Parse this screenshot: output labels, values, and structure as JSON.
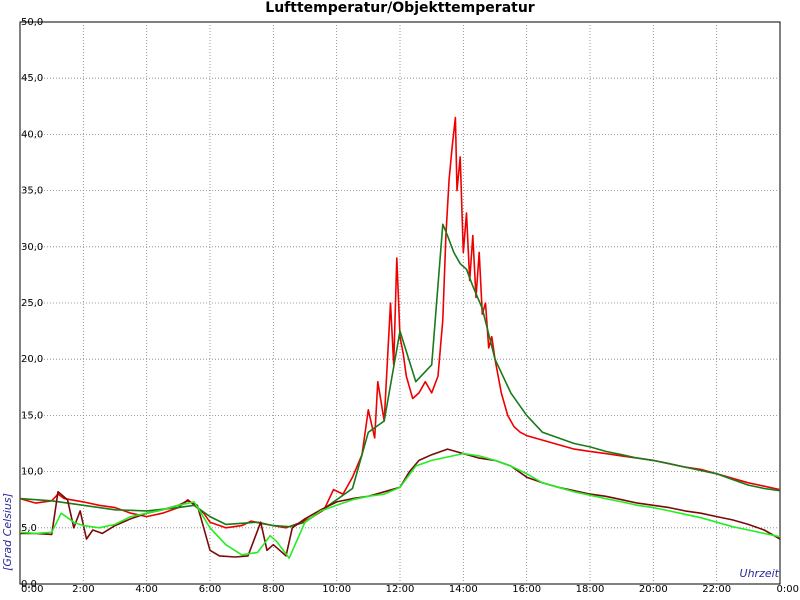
{
  "chart_data": {
    "type": "line",
    "title": "Lufttemperatur/Objekttemperatur",
    "xlabel": "Uhrzeit",
    "ylabel": "[Grad Celsius]",
    "xlim": [
      0,
      24
    ],
    "ylim": [
      0,
      50
    ],
    "grid": true,
    "y_ticks": [
      "0,0",
      "5,0",
      "10,0",
      "15,0",
      "20,0",
      "25,0",
      "30,0",
      "35,0",
      "40,0",
      "45,0",
      "50,0"
    ],
    "x_ticks": [
      "0:00",
      "2:00",
      "4:00",
      "6:00",
      "8:00",
      "10:00",
      "12:00",
      "14:00",
      "16:00",
      "18:00",
      "20:00",
      "22:00",
      "0:00"
    ],
    "series": [
      {
        "color": "#ee0000",
        "x": [
          0,
          0.5,
          1.0,
          1.2,
          1.4,
          1.6,
          2.0,
          2.5,
          3.0,
          3.5,
          4.0,
          4.5,
          5.0,
          5.3,
          5.5,
          5.8,
          6.0,
          6.5,
          7.0,
          7.3,
          7.6,
          8.0,
          8.4,
          8.8,
          9.2,
          9.6,
          9.9,
          10.2,
          10.5,
          10.8,
          11.0,
          11.2,
          11.3,
          11.5,
          11.7,
          11.8,
          11.9,
          12.0,
          12.1,
          12.2,
          12.3,
          12.4,
          12.6,
          12.8,
          13.0,
          13.2,
          13.35,
          13.45,
          13.55,
          13.65,
          13.75,
          13.8,
          13.9,
          14.0,
          14.1,
          14.2,
          14.3,
          14.4,
          14.5,
          14.6,
          14.7,
          14.8,
          14.9,
          15.0,
          15.2,
          15.4,
          15.6,
          15.8,
          16.0,
          16.5,
          17.0,
          17.5,
          18.0,
          18.5,
          19.0,
          19.5,
          20.0,
          20.5,
          21.0,
          21.5,
          22.0,
          22.5,
          23.0,
          23.5,
          24.0
        ],
        "values": [
          7.6,
          7.2,
          7.4,
          8.0,
          7.6,
          7.5,
          7.3,
          7.0,
          6.8,
          6.3,
          6.0,
          6.3,
          6.8,
          7.5,
          7.0,
          6.3,
          5.5,
          5.0,
          5.2,
          5.6,
          5.4,
          5.2,
          5.0,
          5.4,
          5.9,
          6.6,
          8.4,
          8.0,
          9.5,
          11.5,
          15.5,
          13.0,
          18.0,
          14.5,
          25.0,
          19.5,
          29.0,
          22.0,
          20.5,
          18.5,
          17.5,
          16.5,
          17.0,
          18.0,
          17.0,
          18.5,
          23.5,
          31.0,
          36.0,
          39.0,
          41.5,
          35.0,
          38.0,
          29.5,
          33.0,
          27.0,
          31.0,
          25.5,
          29.5,
          24.0,
          25.0,
          21.0,
          22.0,
          20.0,
          17.0,
          15.0,
          14.0,
          13.5,
          13.2,
          12.8,
          12.4,
          12.0,
          11.8,
          11.6,
          11.4,
          11.2,
          11.0,
          10.7,
          10.4,
          10.2,
          9.8,
          9.4,
          9.0,
          8.7,
          8.4
        ]
      },
      {
        "color": "#1a7a1a",
        "x": [
          0,
          1.0,
          2.0,
          3.0,
          4.0,
          5.0,
          5.5,
          6.0,
          6.5,
          7.0,
          7.5,
          8.0,
          8.5,
          9.0,
          9.5,
          10.0,
          10.5,
          11.0,
          11.5,
          12.0,
          12.5,
          13.0,
          13.35,
          13.5,
          13.7,
          13.9,
          14.1,
          14.3,
          14.6,
          15.0,
          15.5,
          16.0,
          16.5,
          17.0,
          17.5,
          18.0,
          18.5,
          19.0,
          19.5,
          20.0,
          20.5,
          21.0,
          21.5,
          22.0,
          22.5,
          23.0,
          23.5,
          24.0
        ],
        "values": [
          7.6,
          7.4,
          7.0,
          6.6,
          6.5,
          6.8,
          7.0,
          6.0,
          5.3,
          5.4,
          5.5,
          5.2,
          5.1,
          5.5,
          6.5,
          7.5,
          8.5,
          13.5,
          14.5,
          22.5,
          18.0,
          19.5,
          32.0,
          31.0,
          29.5,
          28.5,
          28.0,
          26.5,
          24.5,
          20.0,
          17.0,
          15.0,
          13.5,
          13.0,
          12.5,
          12.2,
          11.8,
          11.5,
          11.2,
          11.0,
          10.7,
          10.4,
          10.1,
          9.8,
          9.3,
          8.8,
          8.5,
          8.3
        ]
      },
      {
        "color": "#7a0a0a",
        "x": [
          0,
          0.5,
          1.0,
          1.2,
          1.5,
          1.7,
          1.9,
          2.1,
          2.3,
          2.6,
          3.0,
          3.5,
          4.0,
          4.5,
          5.0,
          5.3,
          5.6,
          5.8,
          6.0,
          6.3,
          6.8,
          7.2,
          7.6,
          7.8,
          8.0,
          8.2,
          8.4,
          8.6,
          9.0,
          9.5,
          10.0,
          10.5,
          11.0,
          11.5,
          12.0,
          12.3,
          12.6,
          13.0,
          13.5,
          14.0,
          14.5,
          15.0,
          15.5,
          16.0,
          16.5,
          17.0,
          17.5,
          18.0,
          18.5,
          19.0,
          19.5,
          20.0,
          20.5,
          21.0,
          21.5,
          22.0,
          22.5,
          23.0,
          23.5,
          24.0
        ],
        "values": [
          4.5,
          4.5,
          4.4,
          8.2,
          7.5,
          5.0,
          6.5,
          4.0,
          4.8,
          4.5,
          5.2,
          5.8,
          6.3,
          6.6,
          7.0,
          7.4,
          7.0,
          5.0,
          3.0,
          2.5,
          2.4,
          2.5,
          5.5,
          3.0,
          3.5,
          3.0,
          2.5,
          5.0,
          5.8,
          6.6,
          7.3,
          7.6,
          7.8,
          8.2,
          8.6,
          10.0,
          11.0,
          11.5,
          12.0,
          11.6,
          11.2,
          11.0,
          10.5,
          9.5,
          9.0,
          8.6,
          8.3,
          8.0,
          7.8,
          7.5,
          7.2,
          7.0,
          6.8,
          6.5,
          6.3,
          6.0,
          5.7,
          5.3,
          4.8,
          4.0
        ]
      },
      {
        "color": "#22ee22",
        "x": [
          0,
          0.5,
          1.0,
          1.3,
          1.7,
          2.0,
          2.5,
          3.0,
          3.5,
          4.0,
          4.5,
          5.0,
          5.5,
          6.0,
          6.5,
          7.0,
          7.5,
          7.9,
          8.1,
          8.5,
          9.0,
          9.5,
          10.0,
          10.5,
          11.0,
          11.5,
          12.0,
          12.5,
          13.0,
          13.5,
          14.0,
          14.5,
          15.0,
          15.5,
          16.0,
          16.5,
          17.0,
          17.5,
          18.0,
          18.5,
          19.0,
          19.5,
          20.0,
          20.5,
          21.0,
          21.5,
          22.0,
          22.5,
          23.0,
          23.5,
          24.0
        ],
        "values": [
          4.6,
          4.5,
          4.6,
          6.3,
          5.5,
          5.2,
          5.0,
          5.3,
          6.0,
          6.3,
          6.6,
          7.0,
          7.3,
          5.0,
          3.5,
          2.6,
          2.8,
          4.3,
          3.8,
          2.3,
          5.5,
          6.5,
          7.0,
          7.5,
          7.8,
          8.0,
          8.6,
          10.5,
          11.0,
          11.3,
          11.6,
          11.4,
          11.0,
          10.5,
          9.8,
          9.0,
          8.6,
          8.2,
          7.9,
          7.6,
          7.3,
          7.0,
          6.8,
          6.5,
          6.2,
          5.9,
          5.5,
          5.1,
          4.8,
          4.5,
          4.2
        ]
      }
    ]
  }
}
